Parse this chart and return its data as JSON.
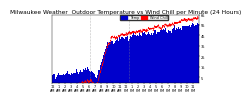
{
  "title": "Milwaukee Weather  Outdoor Temperature vs Wind Chill per Minute (24 Hours)",
  "title_fontsize": 4.2,
  "background_color": "#ffffff",
  "plot_bg_color": "#ffffff",
  "bar_color": "#0000cc",
  "line_color": "#ff0000",
  "legend_temp_color": "#0000cc",
  "legend_chill_color": "#ff0000",
  "legend_temp_label": "Temp",
  "legend_chill_label": "Wind Chill",
  "tick_fontsize": 2.5,
  "ylim": [
    0,
    65
  ],
  "xlim": [
    0,
    1440
  ],
  "num_points": 1440,
  "vertical_line_x1": 370,
  "vertical_line_x2": 750,
  "grid_color": "#cccccc",
  "yticks": [
    5,
    15,
    25,
    35,
    45,
    55,
    65
  ],
  "seed": 12
}
